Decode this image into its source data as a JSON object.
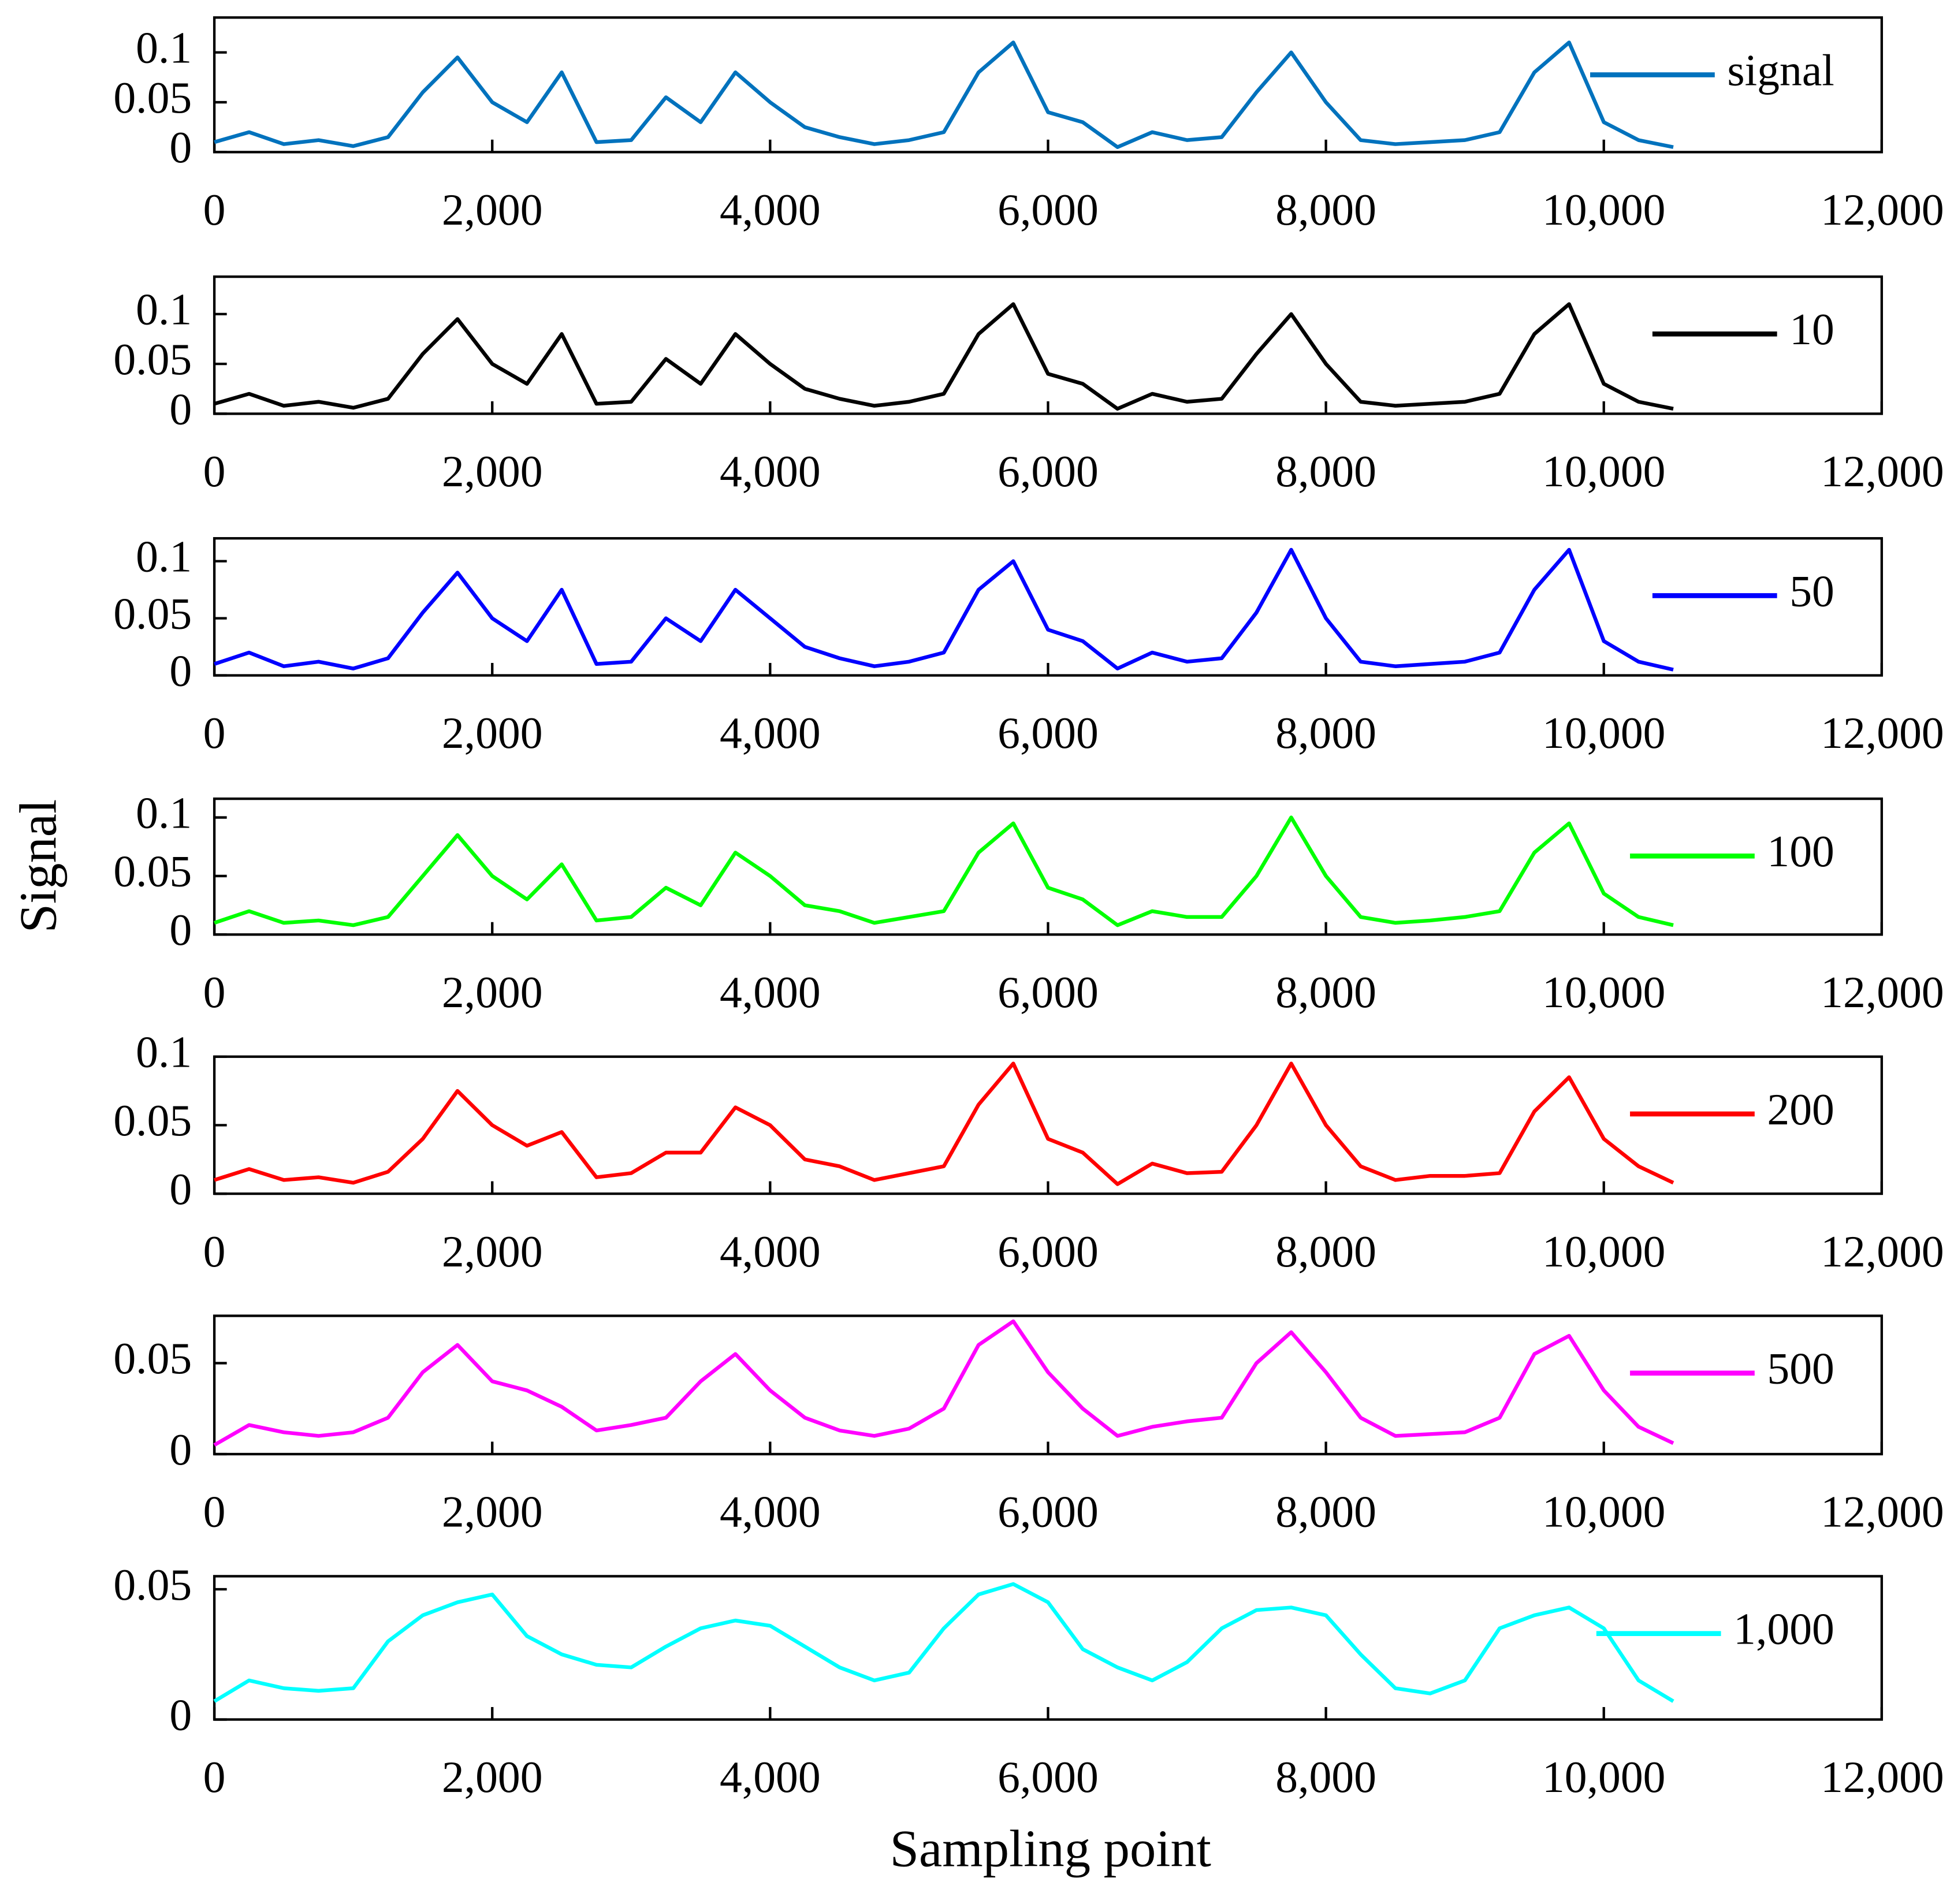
{
  "ylabel": "Signal",
  "xlabel": "Sampling point",
  "chart_data": [
    {
      "type": "line",
      "legend": "upper right",
      "ylim": [
        0,
        0.135
      ],
      "yticks": [
        0,
        0.05,
        0.1
      ],
      "xlim": [
        0,
        12000
      ],
      "xticks": [
        0,
        {
          "value": 2000,
          "label": "2,000"
        },
        {
          "value": 4000,
          "label": "4,000"
        },
        {
          "value": 6000,
          "label": "6,000"
        },
        {
          "value": 8000,
          "label": "8,000"
        },
        {
          "value": 10000,
          "label": "10,000"
        },
        {
          "value": 12000,
          "label": "12,000"
        }
      ],
      "x": [
        0,
        250,
        500,
        750,
        1000,
        1250,
        1500,
        1750,
        2000,
        2250,
        2500,
        2750,
        3000,
        3250,
        3500,
        3750,
        4000,
        4250,
        4500,
        4750,
        5000,
        5250,
        5500,
        5750,
        6000,
        6250,
        6500,
        6750,
        7000,
        7250,
        7500,
        7750,
        8000,
        8250,
        8500,
        8750,
        9000,
        9250,
        9500,
        9750,
        10000,
        10250,
        10500
      ],
      "series": [
        {
          "name": "signal",
          "color": "#0072bd",
          "values": [
            0.01,
            0.02,
            0.008,
            0.012,
            0.006,
            0.015,
            0.06,
            0.095,
            0.05,
            0.03,
            0.08,
            0.01,
            0.012,
            0.055,
            0.03,
            0.08,
            0.05,
            0.025,
            0.015,
            0.008,
            0.012,
            0.02,
            0.08,
            0.11,
            0.04,
            0.03,
            0.005,
            0.02,
            0.012,
            0.015,
            0.06,
            0.1,
            0.05,
            0.012,
            0.008,
            0.01,
            0.012,
            0.02,
            0.08,
            0.11,
            0.03,
            0.012,
            0.005
          ]
        }
      ]
    },
    {
      "type": "line",
      "legend": "upper right",
      "ylim": [
        0,
        0.1375
      ],
      "yticks": [
        0,
        0.05,
        0.1
      ],
      "xlim": [
        0,
        12000
      ],
      "xticks": [
        0,
        {
          "value": 2000,
          "label": "2,000"
        },
        {
          "value": 4000,
          "label": "4,000"
        },
        {
          "value": 6000,
          "label": "6,000"
        },
        {
          "value": 8000,
          "label": "8,000"
        },
        {
          "value": 10000,
          "label": "10,000"
        },
        {
          "value": 12000,
          "label": "12,000"
        }
      ],
      "x": [
        0,
        250,
        500,
        750,
        1000,
        1250,
        1500,
        1750,
        2000,
        2250,
        2500,
        2750,
        3000,
        3250,
        3500,
        3750,
        4000,
        4250,
        4500,
        4750,
        5000,
        5250,
        5500,
        5750,
        6000,
        6250,
        6500,
        6750,
        7000,
        7250,
        7500,
        7750,
        8000,
        8250,
        8500,
        8750,
        9000,
        9250,
        9500,
        9750,
        10000,
        10250,
        10500
      ],
      "series": [
        {
          "name": "10",
          "color": "#000000",
          "values": [
            0.01,
            0.02,
            0.008,
            0.012,
            0.006,
            0.015,
            0.06,
            0.095,
            0.05,
            0.03,
            0.08,
            0.01,
            0.012,
            0.055,
            0.03,
            0.08,
            0.05,
            0.025,
            0.015,
            0.008,
            0.012,
            0.02,
            0.08,
            0.11,
            0.04,
            0.03,
            0.005,
            0.02,
            0.012,
            0.015,
            0.06,
            0.1,
            0.05,
            0.012,
            0.008,
            0.01,
            0.012,
            0.02,
            0.08,
            0.11,
            0.03,
            0.012,
            0.005
          ]
        }
      ]
    },
    {
      "type": "line",
      "legend": "upper right",
      "ylim": [
        0,
        0.12
      ],
      "yticks": [
        0,
        0.05,
        0.1
      ],
      "xlim": [
        0,
        12000
      ],
      "xticks": [
        0,
        {
          "value": 2000,
          "label": "2,000"
        },
        {
          "value": 4000,
          "label": "4,000"
        },
        {
          "value": 6000,
          "label": "6,000"
        },
        {
          "value": 8000,
          "label": "8,000"
        },
        {
          "value": 10000,
          "label": "10,000"
        },
        {
          "value": 12000,
          "label": "12,000"
        }
      ],
      "x": [
        0,
        250,
        500,
        750,
        1000,
        1250,
        1500,
        1750,
        2000,
        2250,
        2500,
        2750,
        3000,
        3250,
        3500,
        3750,
        4000,
        4250,
        4500,
        4750,
        5000,
        5250,
        5500,
        5750,
        6000,
        6250,
        6500,
        6750,
        7000,
        7250,
        7500,
        7750,
        8000,
        8250,
        8500,
        8750,
        9000,
        9250,
        9500,
        9750,
        10000,
        10250,
        10500
      ],
      "series": [
        {
          "name": "50",
          "color": "#0000ff",
          "values": [
            0.01,
            0.02,
            0.008,
            0.012,
            0.006,
            0.015,
            0.055,
            0.09,
            0.05,
            0.03,
            0.075,
            0.01,
            0.012,
            0.05,
            0.03,
            0.075,
            0.05,
            0.025,
            0.015,
            0.008,
            0.012,
            0.02,
            0.075,
            0.1,
            0.04,
            0.03,
            0.006,
            0.02,
            0.012,
            0.015,
            0.055,
            0.11,
            0.05,
            0.012,
            0.008,
            0.01,
            0.012,
            0.02,
            0.075,
            0.11,
            0.03,
            0.012,
            0.005
          ]
        }
      ]
    },
    {
      "type": "line",
      "legend": "upper right",
      "ylim": [
        0,
        0.116
      ],
      "yticks": [
        0,
        0.05,
        0.1
      ],
      "xlim": [
        0,
        12000
      ],
      "xticks": [
        0,
        {
          "value": 2000,
          "label": "2,000"
        },
        {
          "value": 4000,
          "label": "4,000"
        },
        {
          "value": 6000,
          "label": "6,000"
        },
        {
          "value": 8000,
          "label": "8,000"
        },
        {
          "value": 10000,
          "label": "10,000"
        },
        {
          "value": 12000,
          "label": "12,000"
        }
      ],
      "x": [
        0,
        250,
        500,
        750,
        1000,
        1250,
        1500,
        1750,
        2000,
        2250,
        2500,
        2750,
        3000,
        3250,
        3500,
        3750,
        4000,
        4250,
        4500,
        4750,
        5000,
        5250,
        5500,
        5750,
        6000,
        6250,
        6500,
        6750,
        7000,
        7250,
        7500,
        7750,
        8000,
        8250,
        8500,
        8750,
        9000,
        9250,
        9500,
        9750,
        10000,
        10250,
        10500
      ],
      "series": [
        {
          "name": "100",
          "color": "#00ff00",
          "values": [
            0.01,
            0.02,
            0.01,
            0.012,
            0.008,
            0.015,
            0.05,
            0.085,
            0.05,
            0.03,
            0.06,
            0.012,
            0.015,
            0.04,
            0.025,
            0.07,
            0.05,
            0.025,
            0.02,
            0.01,
            0.015,
            0.02,
            0.07,
            0.095,
            0.04,
            0.03,
            0.008,
            0.02,
            0.015,
            0.015,
            0.05,
            0.1,
            0.05,
            0.015,
            0.01,
            0.012,
            0.015,
            0.02,
            0.07,
            0.095,
            0.035,
            0.015,
            0.008
          ]
        }
      ]
    },
    {
      "type": "line",
      "legend": "upper right",
      "ylim": [
        0,
        0.1
      ],
      "yticks": [
        0,
        0.05,
        0.1
      ],
      "xlim": [
        0,
        12000
      ],
      "xticks": [
        0,
        {
          "value": 2000,
          "label": "2,000"
        },
        {
          "value": 4000,
          "label": "4,000"
        },
        {
          "value": 6000,
          "label": "6,000"
        },
        {
          "value": 8000,
          "label": "8,000"
        },
        {
          "value": 10000,
          "label": "10,000"
        },
        {
          "value": 12000,
          "label": "12,000"
        }
      ],
      "x": [
        0,
        250,
        500,
        750,
        1000,
        1250,
        1500,
        1750,
        2000,
        2250,
        2500,
        2750,
        3000,
        3250,
        3500,
        3750,
        4000,
        4250,
        4500,
        4750,
        5000,
        5250,
        5500,
        5750,
        6000,
        6250,
        6500,
        6750,
        7000,
        7250,
        7500,
        7750,
        8000,
        8250,
        8500,
        8750,
        9000,
        9250,
        9500,
        9750,
        10000,
        10250,
        10500
      ],
      "series": [
        {
          "name": "200",
          "color": "#ff0000",
          "values": [
            0.01,
            0.018,
            0.01,
            0.012,
            0.008,
            0.016,
            0.04,
            0.075,
            0.05,
            0.035,
            0.045,
            0.012,
            0.015,
            0.03,
            0.03,
            0.063,
            0.05,
            0.025,
            0.02,
            0.01,
            0.015,
            0.02,
            0.065,
            0.095,
            0.04,
            0.03,
            0.007,
            0.022,
            0.015,
            0.016,
            0.05,
            0.095,
            0.05,
            0.02,
            0.01,
            0.013,
            0.013,
            0.015,
            0.06,
            0.085,
            0.04,
            0.02,
            0.008
          ]
        }
      ]
    },
    {
      "type": "line",
      "legend": "upper right",
      "ylim": [
        0,
        0.076
      ],
      "yticks": [
        0,
        0.05
      ],
      "xlim": [
        0,
        12000
      ],
      "xticks": [
        0,
        {
          "value": 2000,
          "label": "2,000"
        },
        {
          "value": 4000,
          "label": "4,000"
        },
        {
          "value": 6000,
          "label": "6,000"
        },
        {
          "value": 8000,
          "label": "8,000"
        },
        {
          "value": 10000,
          "label": "10,000"
        },
        {
          "value": 12000,
          "label": "12,000"
        }
      ],
      "x": [
        0,
        250,
        500,
        750,
        1000,
        1250,
        1500,
        1750,
        2000,
        2250,
        2500,
        2750,
        3000,
        3250,
        3500,
        3750,
        4000,
        4250,
        4500,
        4750,
        5000,
        5250,
        5500,
        5750,
        6000,
        6250,
        6500,
        6750,
        7000,
        7250,
        7500,
        7750,
        8000,
        8250,
        8500,
        8750,
        9000,
        9250,
        9500,
        9750,
        10000,
        10250,
        10500
      ],
      "series": [
        {
          "name": "500",
          "color": "#ff00ff",
          "values": [
            0.005,
            0.016,
            0.012,
            0.01,
            0.012,
            0.02,
            0.045,
            0.06,
            0.04,
            0.035,
            0.026,
            0.013,
            0.016,
            0.02,
            0.04,
            0.055,
            0.035,
            0.02,
            0.013,
            0.01,
            0.014,
            0.025,
            0.06,
            0.073,
            0.045,
            0.025,
            0.01,
            0.015,
            0.018,
            0.02,
            0.05,
            0.067,
            0.045,
            0.02,
            0.01,
            0.011,
            0.012,
            0.02,
            0.055,
            0.065,
            0.035,
            0.015,
            0.006
          ]
        }
      ]
    },
    {
      "type": "line",
      "legend": "upper right",
      "ylim": [
        0,
        0.055
      ],
      "yticks": [
        0,
        0.05
      ],
      "xlim": [
        0,
        12000
      ],
      "xticks": [
        0,
        {
          "value": 2000,
          "label": "2,000"
        },
        {
          "value": 4000,
          "label": "4,000"
        },
        {
          "value": 6000,
          "label": "6,000"
        },
        {
          "value": 8000,
          "label": "8,000"
        },
        {
          "value": 10000,
          "label": "10,000"
        },
        {
          "value": 12000,
          "label": "12,000"
        }
      ],
      "x": [
        0,
        250,
        500,
        750,
        1000,
        1250,
        1500,
        1750,
        2000,
        2250,
        2500,
        2750,
        3000,
        3250,
        3500,
        3750,
        4000,
        4250,
        4500,
        4750,
        5000,
        5250,
        5500,
        5750,
        6000,
        6250,
        6500,
        6750,
        7000,
        7250,
        7500,
        7750,
        8000,
        8250,
        8500,
        8750,
        9000,
        9250,
        9500,
        9750,
        10000,
        10250,
        10500
      ],
      "series": [
        {
          "name": "1,000",
          "color": "#00ffff",
          "values": [
            0.007,
            0.015,
            0.012,
            0.011,
            0.012,
            0.03,
            0.04,
            0.045,
            0.048,
            0.032,
            0.025,
            0.021,
            0.02,
            0.028,
            0.035,
            0.038,
            0.036,
            0.028,
            0.02,
            0.015,
            0.018,
            0.035,
            0.048,
            0.052,
            0.045,
            0.027,
            0.02,
            0.015,
            0.022,
            0.035,
            0.042,
            0.043,
            0.04,
            0.025,
            0.012,
            0.01,
            0.015,
            0.035,
            0.04,
            0.043,
            0.035,
            0.015,
            0.007
          ]
        }
      ]
    }
  ]
}
